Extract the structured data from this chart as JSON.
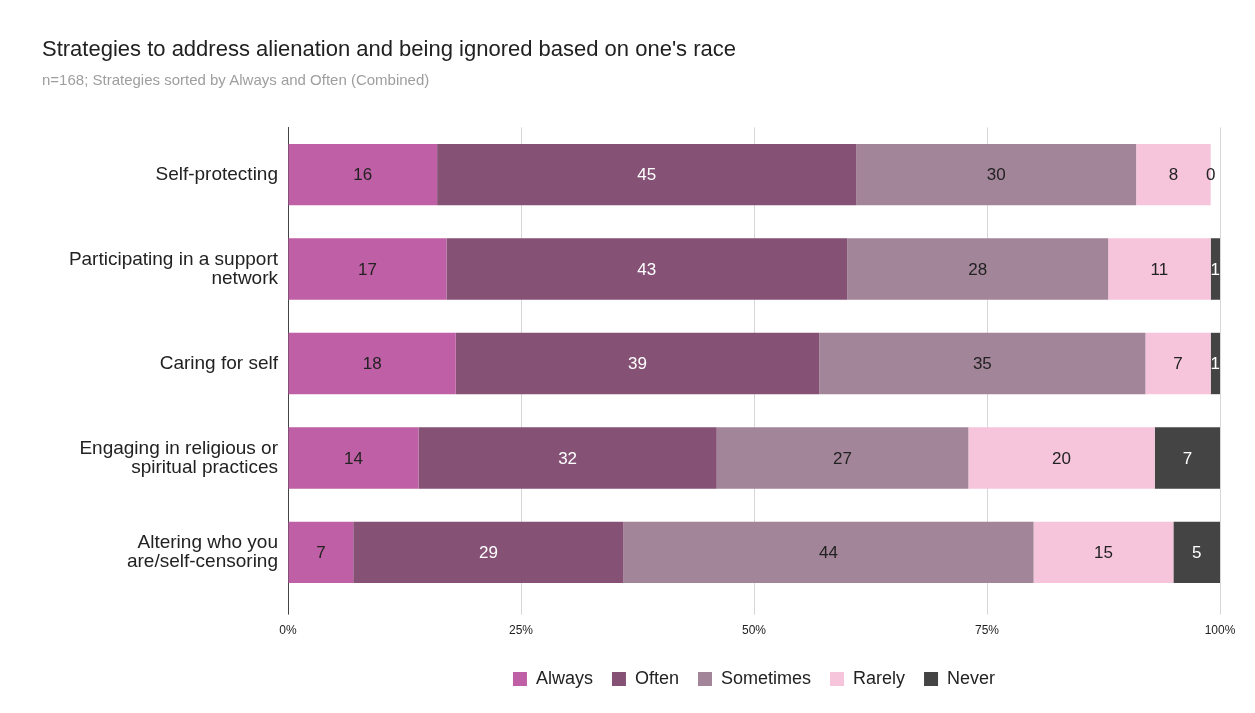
{
  "chart_data": {
    "type": "bar",
    "orientation": "horizontal",
    "stacked": true,
    "title": "Strategies to address alienation and being ignored based on one's race",
    "subtitle": "n=168; Strategies sorted by Always and Often (Combined)",
    "categories": [
      "Self-protecting",
      "Participating in a support network",
      "Caring for self",
      "Engaging in religious or spiritual practices",
      "Altering who you are/self-censoring"
    ],
    "series": [
      {
        "name": "Always",
        "color": "#bf5fa5",
        "values": [
          16,
          17,
          18,
          14,
          7
        ]
      },
      {
        "name": "Often",
        "color": "#855276",
        "values": [
          45,
          43,
          39,
          32,
          29
        ]
      },
      {
        "name": "Sometimes",
        "color": "#a38599",
        "values": [
          30,
          28,
          35,
          27,
          44
        ]
      },
      {
        "name": "Rarely",
        "color": "#f6c5dc",
        "values": [
          8,
          11,
          7,
          20,
          15
        ]
      },
      {
        "name": "Never",
        "color": "#444444",
        "values": [
          0,
          1,
          1,
          7,
          5
        ]
      }
    ],
    "xlim": [
      0,
      100
    ],
    "xticks": [
      {
        "value": 0,
        "label": "0%"
      },
      {
        "value": 25,
        "label": "25%"
      },
      {
        "value": 50,
        "label": "50%"
      },
      {
        "value": 75,
        "label": "75%"
      },
      {
        "value": 100,
        "label": "100%"
      }
    ],
    "grid": "x",
    "legend": "bottom",
    "data_labels": true
  }
}
